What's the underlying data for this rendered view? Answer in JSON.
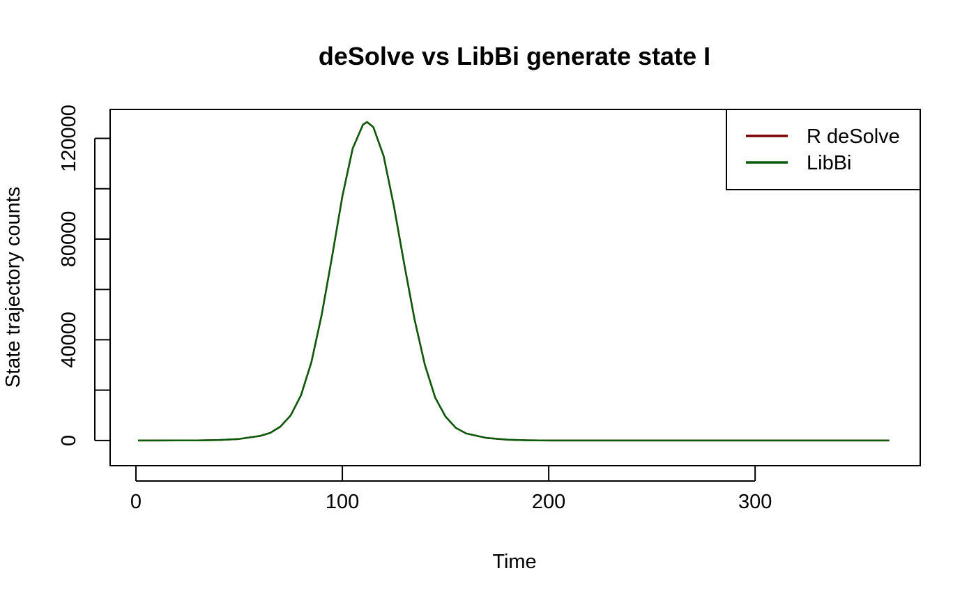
{
  "chart_data": {
    "type": "line",
    "title": "deSolve vs LibBi generate state I",
    "xlabel": "Time",
    "ylabel": "State trajectory counts",
    "xlim": [
      -12.5,
      380
    ],
    "ylim": [
      -10000,
      131500
    ],
    "x_ticks": [
      0,
      100,
      200,
      300
    ],
    "x_tick_labels": [
      "0",
      "100",
      "200",
      "300"
    ],
    "y_ticks": [
      0,
      20000,
      40000,
      60000,
      80000,
      100000,
      120000
    ],
    "y_tick_labels": [
      "0",
      "",
      "40000",
      "",
      "80000",
      "",
      "120000"
    ],
    "grid": false,
    "legend_position": "top-right",
    "series": [
      {
        "name": "R deSolve",
        "color": "#7a0000",
        "x": [
          1,
          10,
          20,
          30,
          40,
          50,
          60,
          65,
          70,
          75,
          80,
          85,
          90,
          95,
          100,
          105,
          110,
          112,
          115,
          120,
          125,
          130,
          135,
          140,
          145,
          150,
          155,
          160,
          170,
          180,
          190,
          200,
          220,
          250,
          300,
          365
        ],
        "y": [
          0,
          0,
          20,
          60,
          200,
          600,
          1800,
          3000,
          5500,
          10000,
          18000,
          31000,
          50000,
          73000,
          97000,
          116000,
          125500,
          126500,
          124500,
          113000,
          93000,
          70000,
          48000,
          30000,
          17000,
          9500,
          5000,
          2800,
          1000,
          300,
          80,
          0,
          0,
          0,
          0,
          0
        ]
      },
      {
        "name": "LibBi",
        "color": "#0a5c0a",
        "x": [
          1,
          10,
          20,
          30,
          40,
          50,
          60,
          65,
          70,
          75,
          80,
          85,
          90,
          95,
          100,
          105,
          110,
          112,
          115,
          120,
          125,
          130,
          135,
          140,
          145,
          150,
          155,
          160,
          170,
          180,
          190,
          200,
          220,
          250,
          300,
          365
        ],
        "y": [
          0,
          0,
          20,
          60,
          200,
          600,
          1800,
          3000,
          5500,
          10000,
          18000,
          31000,
          50000,
          73000,
          97000,
          116000,
          125500,
          126500,
          124500,
          113000,
          93000,
          70000,
          48000,
          30000,
          17000,
          9500,
          5000,
          2800,
          1000,
          300,
          80,
          0,
          0,
          0,
          0,
          0
        ]
      }
    ]
  }
}
